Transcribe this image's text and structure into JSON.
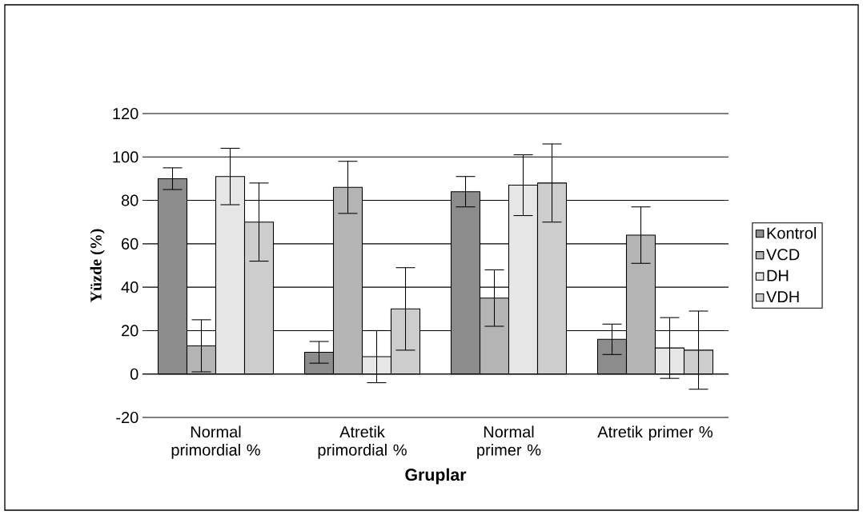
{
  "chart_data": {
    "type": "bar",
    "xlabel": "Gruplar",
    "ylabel": "Yüzde (%)",
    "categories": [
      "Normal primordial %",
      "Atretik primordial %",
      "Normal primer %",
      "Atretik primer %"
    ],
    "series": [
      {
        "name": "Kontrol",
        "color": "#8c8c8c",
        "values": [
          90,
          10,
          84,
          16
        ],
        "errors": [
          5,
          5,
          7,
          7
        ]
      },
      {
        "name": "VCD",
        "color": "#b4b4b4",
        "values": [
          13,
          86,
          35,
          64
        ],
        "errors": [
          12,
          12,
          13,
          13
        ]
      },
      {
        "name": "DH",
        "color": "#e6e6e6",
        "values": [
          91,
          8,
          87,
          12
        ],
        "errors": [
          13,
          12,
          14,
          14
        ]
      },
      {
        "name": "VDH",
        "color": "#cdcdcd",
        "values": [
          70,
          30,
          88,
          11
        ],
        "errors": [
          18,
          19,
          18,
          18
        ]
      }
    ],
    "ylim": [
      -20,
      120
    ],
    "yticks": [
      -20,
      0,
      20,
      40,
      60,
      80,
      100,
      120
    ],
    "grid": "y",
    "legend": "right"
  }
}
